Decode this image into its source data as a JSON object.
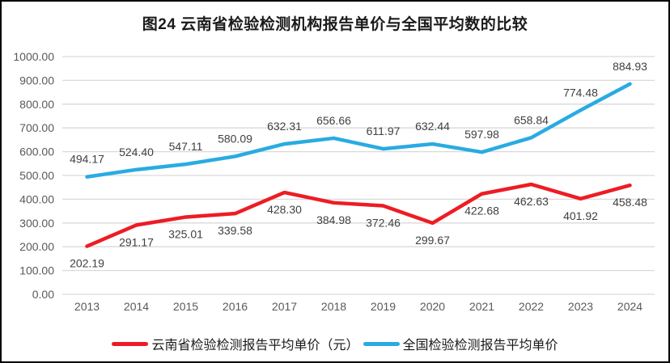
{
  "title": "图24 云南省检验检测机构报告单价与全国平均数的比较",
  "chart_data": {
    "type": "line",
    "title": "图24 云南省检验检测机构报告单价与全国平均数的比较",
    "categories": [
      "2013",
      "2014",
      "2015",
      "2016",
      "2017",
      "2018",
      "2019",
      "2020",
      "2021",
      "2022",
      "2023",
      "2024"
    ],
    "series": [
      {
        "name": "云南省检验检测报告平均单价（元）",
        "color": "#ED1C24",
        "label_position": "below",
        "values": [
          202.19,
          291.17,
          325.01,
          339.58,
          428.3,
          384.98,
          372.46,
          299.67,
          422.68,
          462.63,
          401.92,
          458.48
        ]
      },
      {
        "name": "全国检验检测报告平均单价",
        "color": "#29ABE2",
        "label_position": "above",
        "values": [
          494.17,
          524.4,
          547.11,
          580.09,
          632.31,
          656.66,
          611.97,
          632.44,
          597.98,
          658.84,
          774.48,
          884.93
        ]
      }
    ],
    "ylim": [
      0,
      1000
    ],
    "yticks": [
      "0.00",
      "100.00",
      "200.00",
      "300.00",
      "400.00",
      "500.00",
      "600.00",
      "700.00",
      "800.00",
      "900.00",
      "1000.00"
    ],
    "grid": true,
    "data_labels": true,
    "legend_position": "bottom"
  },
  "colors": {
    "gridline": "#D9D9D9",
    "axis_text": "#595959",
    "data_label_text": "#404040",
    "border": "#000000",
    "background": "#FFFFFF"
  }
}
